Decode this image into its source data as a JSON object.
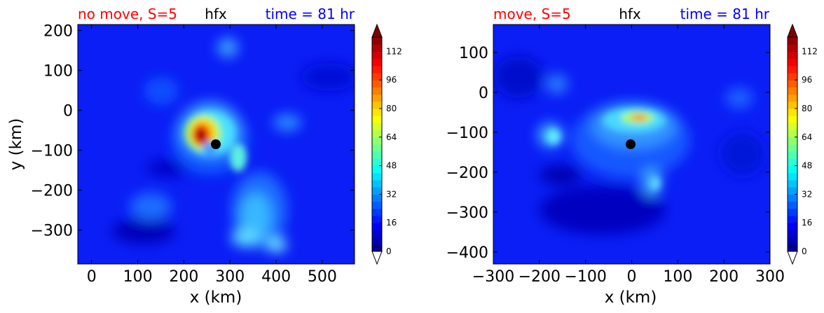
{
  "chart_data": [
    {
      "type": "heatmap",
      "title_left": "no move, S=5",
      "title_center": "hfx",
      "title_right": "time = 81 hr",
      "title_colors": {
        "left": "#ff0000",
        "center": "#000000",
        "right": "#0000ff"
      },
      "xlabel": "x (km)",
      "ylabel": "y (km)",
      "xlim": [
        -30,
        570
      ],
      "ylim": [
        -385,
        215
      ],
      "xticks": [
        0,
        100,
        200,
        300,
        400,
        500
      ],
      "xtick_labels": [
        "0",
        "100",
        "200",
        "300",
        "400",
        "500"
      ],
      "yticks": [
        -300,
        -200,
        -100,
        0,
        100,
        200
      ],
      "ytick_labels": [
        "−300",
        "−200",
        "−100",
        "0",
        "100",
        "200"
      ],
      "center_marker": {
        "x": 275,
        "y": -85
      },
      "colorbar": {
        "vmin": 0,
        "vmax": 120,
        "extend": "both",
        "ticks": [
          0,
          16,
          32,
          48,
          64,
          80,
          96,
          112
        ],
        "tick_labels": [
          "0",
          "16",
          "32",
          "48",
          "64",
          "80",
          "96",
          "112"
        ]
      }
    },
    {
      "type": "heatmap",
      "title_left": "move, S=5",
      "title_center": "hfx",
      "title_right": "time = 81 hr",
      "title_colors": {
        "left": "#ff0000",
        "center": "#000000",
        "right": "#0000ff"
      },
      "xlabel": "x (km)",
      "ylabel": "",
      "xlim": [
        -300,
        300
      ],
      "ylim": [
        -430,
        170
      ],
      "xticks": [
        -300,
        -200,
        -100,
        0,
        100,
        200,
        300
      ],
      "xtick_labels": [
        "−300",
        "−200",
        "−100",
        "0",
        "100",
        "200",
        "300"
      ],
      "yticks": [
        -400,
        -300,
        -200,
        -100,
        0,
        100
      ],
      "ytick_labels": [
        "−400",
        "−300",
        "−200",
        "−100",
        "0",
        "100"
      ],
      "center_marker": {
        "x": 0,
        "y": -135
      },
      "colorbar": {
        "vmin": 0,
        "vmax": 120,
        "extend": "both",
        "ticks": [
          0,
          16,
          32,
          48,
          64,
          80,
          96,
          112
        ],
        "tick_labels": [
          "0",
          "16",
          "32",
          "48",
          "64",
          "80",
          "96",
          "112"
        ]
      }
    }
  ],
  "colormap": [
    "#00007f",
    "#0000ff",
    "#007fff",
    "#00ffff",
    "#7fff7f",
    "#ffff00",
    "#ff7f00",
    "#ff0000",
    "#7f0000"
  ]
}
